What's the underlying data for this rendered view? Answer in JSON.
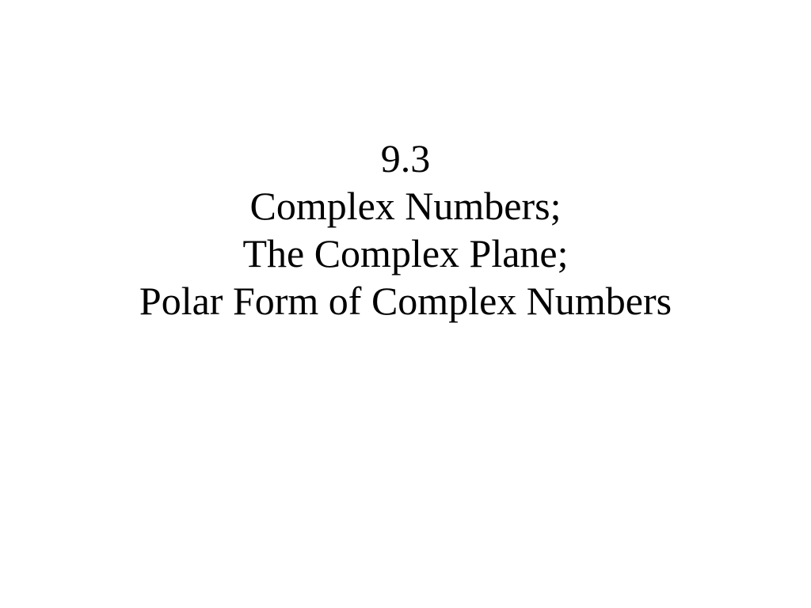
{
  "slide": {
    "section_number": "9.3",
    "title_line_1": "Complex Numbers;",
    "title_line_2": "The Complex Plane;",
    "title_line_3": "Polar Form of Complex Numbers",
    "background_color": "#ffffff",
    "text_color": "#000000",
    "font_family": "Times New Roman",
    "font_size": 50,
    "font_weight": 400
  }
}
